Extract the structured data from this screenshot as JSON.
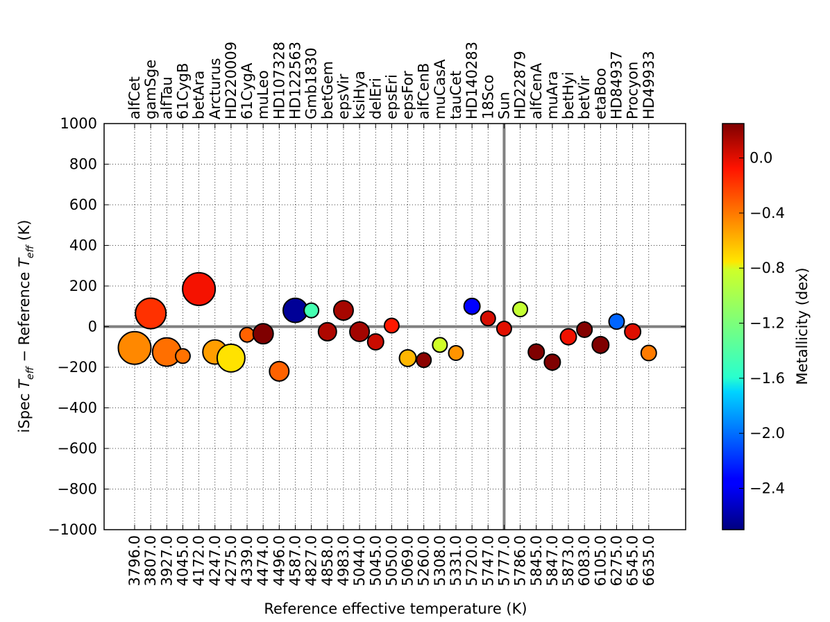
{
  "chart_data": {
    "type": "scatter",
    "title": "",
    "xlabel": "Reference effective temperature (K)",
    "ylabel_parts": {
      "prefix": "iSpec ",
      "T1": "T",
      "sub1": "eff",
      "mid": " − Reference ",
      "T2": "T",
      "sub2": "eff",
      "suffix": " (K)"
    },
    "ylim": [
      -1000,
      1000
    ],
    "yticks": [
      -1000,
      -800,
      -600,
      -400,
      -200,
      0,
      200,
      400,
      600,
      800,
      1000
    ],
    "ytick_labels": [
      "−1000",
      "−800",
      "−600",
      "−400",
      "−200",
      "0",
      "200",
      "400",
      "600",
      "800",
      "1000"
    ],
    "grid": true,
    "reference_line_y": 0,
    "reference_line_x_star": "Sun",
    "colorbar": {
      "label": "Metallicity (dex)",
      "range": [
        -2.7,
        0.25
      ],
      "ticks": [
        0.0,
        -0.4,
        -0.8,
        -1.2,
        -1.6,
        -2.0,
        -2.4
      ],
      "tick_labels": [
        "0.0",
        "−0.4",
        "−0.8",
        "−1.2",
        "−1.6",
        "−2.0",
        "−2.4"
      ]
    },
    "stars": [
      {
        "name": "alfCet",
        "teff_ref": "3796.0",
        "diff": -105,
        "feh": -0.45,
        "size": 47
      },
      {
        "name": "gamSge",
        "teff_ref": "3807.0",
        "diff": 65,
        "feh": -0.17,
        "size": 44
      },
      {
        "name": "alfTau",
        "teff_ref": "3927.0",
        "diff": -125,
        "feh": -0.37,
        "size": 41
      },
      {
        "name": "61CygB",
        "teff_ref": "4045.0",
        "diff": -145,
        "feh": -0.38,
        "size": 21
      },
      {
        "name": "betAra",
        "teff_ref": "4172.0",
        "diff": 185,
        "feh": -0.05,
        "size": 47
      },
      {
        "name": "Arcturus",
        "teff_ref": "4247.0",
        "diff": -125,
        "feh": -0.52,
        "size": 35
      },
      {
        "name": "HD220009",
        "teff_ref": "4275.0",
        "diff": -155,
        "feh": -0.74,
        "size": 40
      },
      {
        "name": "61CygA",
        "teff_ref": "4339.0",
        "diff": -40,
        "feh": -0.33,
        "size": 21
      },
      {
        "name": "muLeo",
        "teff_ref": "4474.0",
        "diff": -35,
        "feh": 0.25,
        "size": 29
      },
      {
        "name": "HD107328",
        "teff_ref": "4496.0",
        "diff": -220,
        "feh": -0.33,
        "size": 28
      },
      {
        "name": "HD122563",
        "teff_ref": "4587.0",
        "diff": 80,
        "feh": -2.64,
        "size": 35
      },
      {
        "name": "Gmb1830",
        "teff_ref": "4827.0",
        "diff": 80,
        "feh": -1.46,
        "size": 21
      },
      {
        "name": "betGem",
        "teff_ref": "4858.0",
        "diff": -25,
        "feh": 0.13,
        "size": 26
      },
      {
        "name": "epsVir",
        "teff_ref": "4983.0",
        "diff": 80,
        "feh": 0.15,
        "size": 28
      },
      {
        "name": "ksiHya",
        "teff_ref": "5044.0",
        "diff": -25,
        "feh": 0.16,
        "size": 28
      },
      {
        "name": "delEri",
        "teff_ref": "5045.0",
        "diff": -75,
        "feh": 0.06,
        "size": 23
      },
      {
        "name": "epsEri",
        "teff_ref": "5050.0",
        "diff": 5,
        "feh": -0.09,
        "size": 21
      },
      {
        "name": "epsFor",
        "teff_ref": "5069.0",
        "diff": -155,
        "feh": -0.6,
        "size": 24
      },
      {
        "name": "alfCenB",
        "teff_ref": "5260.0",
        "diff": -165,
        "feh": 0.22,
        "size": 21
      },
      {
        "name": "muCasA",
        "teff_ref": "5308.0",
        "diff": -90,
        "feh": -0.81,
        "size": 21
      },
      {
        "name": "tauCet",
        "teff_ref": "5331.0",
        "diff": -130,
        "feh": -0.49,
        "size": 21
      },
      {
        "name": "HD140283",
        "teff_ref": "5720.0",
        "diff": 100,
        "feh": -2.36,
        "size": 23
      },
      {
        "name": "18Sco",
        "teff_ref": "5747.0",
        "diff": 40,
        "feh": 0.03,
        "size": 21
      },
      {
        "name": "Sun",
        "teff_ref": "5777.0",
        "diff": -10,
        "feh": 0.0,
        "size": 21
      },
      {
        "name": "HD22879",
        "teff_ref": "5786.0",
        "diff": 85,
        "feh": -0.86,
        "size": 21
      },
      {
        "name": "alfCenA",
        "teff_ref": "5845.0",
        "diff": -125,
        "feh": 0.26,
        "size": 23
      },
      {
        "name": "muAra",
        "teff_ref": "5847.0",
        "diff": -175,
        "feh": 0.35,
        "size": 23
      },
      {
        "name": "betHyi",
        "teff_ref": "5873.0",
        "diff": -50,
        "feh": -0.04,
        "size": 23
      },
      {
        "name": "betVir",
        "teff_ref": "6083.0",
        "diff": -15,
        "feh": 0.24,
        "size": 22
      },
      {
        "name": "etaBoo",
        "teff_ref": "6105.0",
        "diff": -90,
        "feh": 0.32,
        "size": 24
      },
      {
        "name": "HD84937",
        "teff_ref": "6275.0",
        "diff": 25,
        "feh": -2.03,
        "size": 22
      },
      {
        "name": "Procyon",
        "teff_ref": "6545.0",
        "diff": -25,
        "feh": 0.01,
        "size": 23
      },
      {
        "name": "HD49933",
        "teff_ref": "6635.0",
        "diff": -130,
        "feh": -0.41,
        "size": 22
      }
    ]
  }
}
